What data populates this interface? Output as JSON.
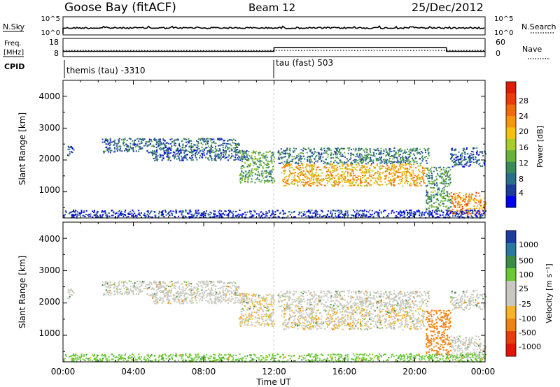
{
  "header": {
    "station": "Goose Bay (fitACF)",
    "beam": "Beam 12",
    "date": "25/Dec/2012"
  },
  "nsky_panel": {
    "left_label": "N.Sky",
    "right_label": "N.Search",
    "left_ticks": [
      "10^5",
      "10^0"
    ],
    "right_ticks": [
      "10^5",
      "10^0"
    ]
  },
  "freq_panel": {
    "left_label_1": "Freq.",
    "left_label_2": "[MHz]",
    "right_label": "Nave",
    "left_ticks": [
      "18",
      "8"
    ],
    "right_ticks": [
      "60",
      "0"
    ]
  },
  "cpid_panel": {
    "label": "CPID",
    "segments": [
      {
        "name": "themis (tau) -3310",
        "start_hour": 0
      },
      {
        "name": "tau (fast) 503",
        "start_hour": 12
      }
    ]
  },
  "x_axis": {
    "label": "Time UT",
    "ticks": [
      "00:00",
      "04:00",
      "08:00",
      "12:00",
      "16:00",
      "20:00",
      "00:00"
    ]
  },
  "power_panel": {
    "ylabel": "Slant Range [km]",
    "yticks": [
      "1000",
      "2000",
      "3000",
      "4000"
    ],
    "colorbar_label": "Power [dB]",
    "colorbar_ticks": [
      "4",
      "8",
      "12",
      "16",
      "20",
      "24",
      "28"
    ],
    "colorbar_colors": [
      "#0000ee",
      "#1e3c9c",
      "#2a6e8a",
      "#3c8a5a",
      "#66b23a",
      "#a8cc28",
      "#f2c20e",
      "#f6960a",
      "#f36a0a",
      "#ec3a08",
      "#e41a08"
    ]
  },
  "velocity_panel": {
    "ylabel": "Slant Range [km]",
    "yticks": [
      "1000",
      "2000",
      "3000",
      "4000"
    ],
    "colorbar_label": "Velocity [m s⁻¹]",
    "colorbar_ticks": [
      "1000",
      "500",
      "100",
      "25",
      "-25",
      "-100",
      "-500",
      "-1000"
    ],
    "colorbar_colors": [
      "#1e3ca0",
      "#2a78a0",
      "#3c8a48",
      "#6ac832",
      "#c8c8c0",
      "#c8c8c0",
      "#f6b428",
      "#f08214",
      "#e83c0a",
      "#e41408"
    ]
  },
  "chart_data": {
    "type": "heatmap",
    "x_range_hours": [
      0,
      24
    ],
    "y_range_km": [
      180,
      4500
    ],
    "nsky_scale": "log",
    "nsky_range": [
      "10^0",
      "10^5"
    ],
    "freq_range_mhz": [
      8,
      18
    ],
    "nave_range": [
      0,
      60
    ],
    "freq_trace": [
      {
        "start_hour": 0,
        "end_hour": 12,
        "freq_mhz": 10.5
      },
      {
        "start_hour": 12,
        "end_hour": 21.8,
        "freq_mhz": 12.5
      },
      {
        "start_hour": 21.8,
        "end_hour": 24,
        "freq_mhz": 10.5
      }
    ],
    "nave_trace": [
      {
        "start_hour": 0,
        "end_hour": 12,
        "nave": 18
      },
      {
        "start_hour": 12,
        "end_hour": 21.8,
        "nave": 18
      },
      {
        "start_hour": 21.8,
        "end_hour": 24,
        "nave": 18
      }
    ],
    "scatter_regions": [
      {
        "start_hour": 0.2,
        "end_hour": 0.6,
        "range_low_km": 2150,
        "range_high_km": 2450,
        "power_db": 6,
        "velocity_ms": 0
      },
      {
        "start_hour": 2.2,
        "end_hour": 10.0,
        "range_low_km": 2250,
        "range_high_km": 2700,
        "power_db": 9,
        "velocity_ms": 0
      },
      {
        "start_hour": 5.0,
        "end_hour": 10.5,
        "range_low_km": 2000,
        "range_high_km": 2350,
        "power_db": 8,
        "velocity_ms": 0
      },
      {
        "start_hour": 10.0,
        "end_hour": 12.0,
        "range_low_km": 1300,
        "range_high_km": 2300,
        "power_db": 13,
        "velocity_ms": -20
      },
      {
        "start_hour": 12.4,
        "end_hour": 20.6,
        "range_low_km": 1200,
        "range_high_km": 1900,
        "power_db": 22,
        "velocity_ms": -20
      },
      {
        "start_hour": 12.2,
        "end_hour": 20.8,
        "range_low_km": 1900,
        "range_high_km": 2400,
        "power_db": 10,
        "velocity_ms": 0
      },
      {
        "start_hour": 20.6,
        "end_hour": 22.0,
        "range_low_km": 400,
        "range_high_km": 1800,
        "power_db": 12,
        "velocity_ms": -200
      },
      {
        "start_hour": 22.0,
        "end_hour": 24.0,
        "range_low_km": 300,
        "range_high_km": 1000,
        "power_db": 24,
        "velocity_ms": 0
      },
      {
        "start_hour": 22.0,
        "end_hour": 24.0,
        "range_low_km": 1800,
        "range_high_km": 2400,
        "power_db": 8,
        "velocity_ms": 0
      },
      {
        "start_hour": 0.0,
        "end_hour": 24.0,
        "range_low_km": 200,
        "range_high_km": 450,
        "power_db": 5,
        "velocity_ms": 50
      }
    ]
  }
}
